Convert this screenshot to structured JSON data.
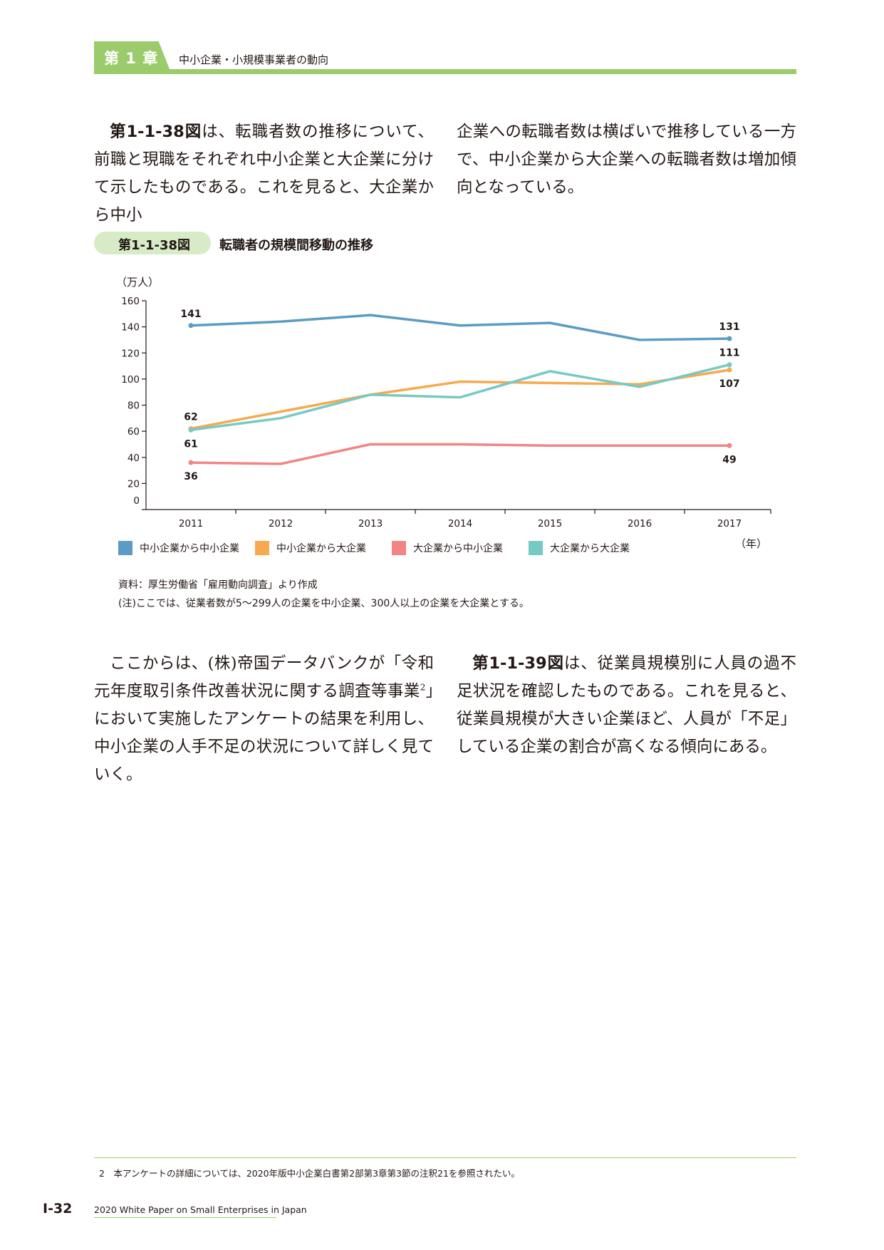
{
  "header": {
    "chapter": "第 1 章",
    "title": "中小企業・小規模事業者の動向"
  },
  "intro": {
    "left": {
      "ref": "第1-1-38図",
      "text": "は、転職者数の推移について、前職と現職をそれぞれ中小企業と大企業に分けて示したものである。これを見ると、大企業から中小"
    },
    "right": {
      "text": "企業への転職者数は横ばいで推移している一方で、中小企業から大企業への転職者数は増加傾向となっている。"
    }
  },
  "figure": {
    "number": "第1-1-38図",
    "title": "転職者の規模間移動の推移",
    "unit_label": "（万人）",
    "x_unit_label": "（年）",
    "source": "資料：厚生労働省「雇用動向調査」より作成",
    "note": "(注)ここでは、従業者数が5〜299人の企業を中小企業、300人以上の企業を大企業とする。"
  },
  "chart_data": {
    "type": "line",
    "title": "転職者の規模間移動の推移",
    "xlabel": "（年）",
    "ylabel": "（万人）",
    "x": [
      "2011",
      "2012",
      "2013",
      "2014",
      "2015",
      "2016",
      "2017"
    ],
    "ylim": [
      0,
      160
    ],
    "yticks": [
      0,
      20,
      40,
      60,
      80,
      100,
      120,
      140,
      160
    ],
    "grid": false,
    "legend_position": "bottom",
    "series": [
      {
        "name": "中小企業から中小企業",
        "color": "#5b9bc4",
        "values": [
          141,
          144,
          149,
          141,
          143,
          130,
          131
        ],
        "labels": [
          "141",
          "",
          "",
          "",
          "",
          "",
          "131"
        ],
        "label_side": [
          "above",
          "",
          "",
          "",
          "",
          "",
          "above"
        ]
      },
      {
        "name": "中小企業から大企業",
        "color": "#f7a94f",
        "values": [
          62,
          75,
          88,
          98,
          97,
          96,
          107
        ],
        "labels": [
          "62",
          "",
          "",
          "",
          "",
          "",
          "107"
        ],
        "label_side": [
          "above",
          "",
          "",
          "",
          "",
          "",
          "below"
        ]
      },
      {
        "name": "大企業から中小企業",
        "color": "#f28583",
        "values": [
          36,
          35,
          50,
          50,
          49,
          49,
          49
        ],
        "labels": [
          "36",
          "",
          "",
          "",
          "",
          "",
          "49"
        ],
        "label_side": [
          "below",
          "",
          "",
          "",
          "",
          "",
          "below"
        ]
      },
      {
        "name": "大企業から大企業",
        "color": "#77cac4",
        "values": [
          61,
          70,
          88,
          86,
          106,
          94,
          111
        ],
        "labels": [
          "61",
          "",
          "",
          "",
          "",
          "",
          "111"
        ],
        "label_side": [
          "below",
          "",
          "",
          "",
          "",
          "",
          "above"
        ]
      }
    ]
  },
  "outro": {
    "left": {
      "text_before": "ここからは、(株)帝国データバンクが「令和元年度取引条件改善状況に関する調査等事業",
      "sup": "2",
      "text_after": "」において実施したアンケートの結果を利用し、中小企業の人手不足の状況について詳しく見ていく。"
    },
    "right": {
      "ref": "第1-1-39図",
      "text": "は、従業員規模別に人員の過不足状況を確認したものである。これを見ると、従業員規模が大きい企業ほど、人員が「不足」している企業の割合が高くなる傾向にある。"
    }
  },
  "footnote": "2　本アンケートの詳細については、2020年版中小企業白書第2部第3章第3節の注釈21を参照されたい。",
  "footer": {
    "page": "Ⅰ-32",
    "caption": "2020 White Paper on Small Enterprises in Japan"
  }
}
